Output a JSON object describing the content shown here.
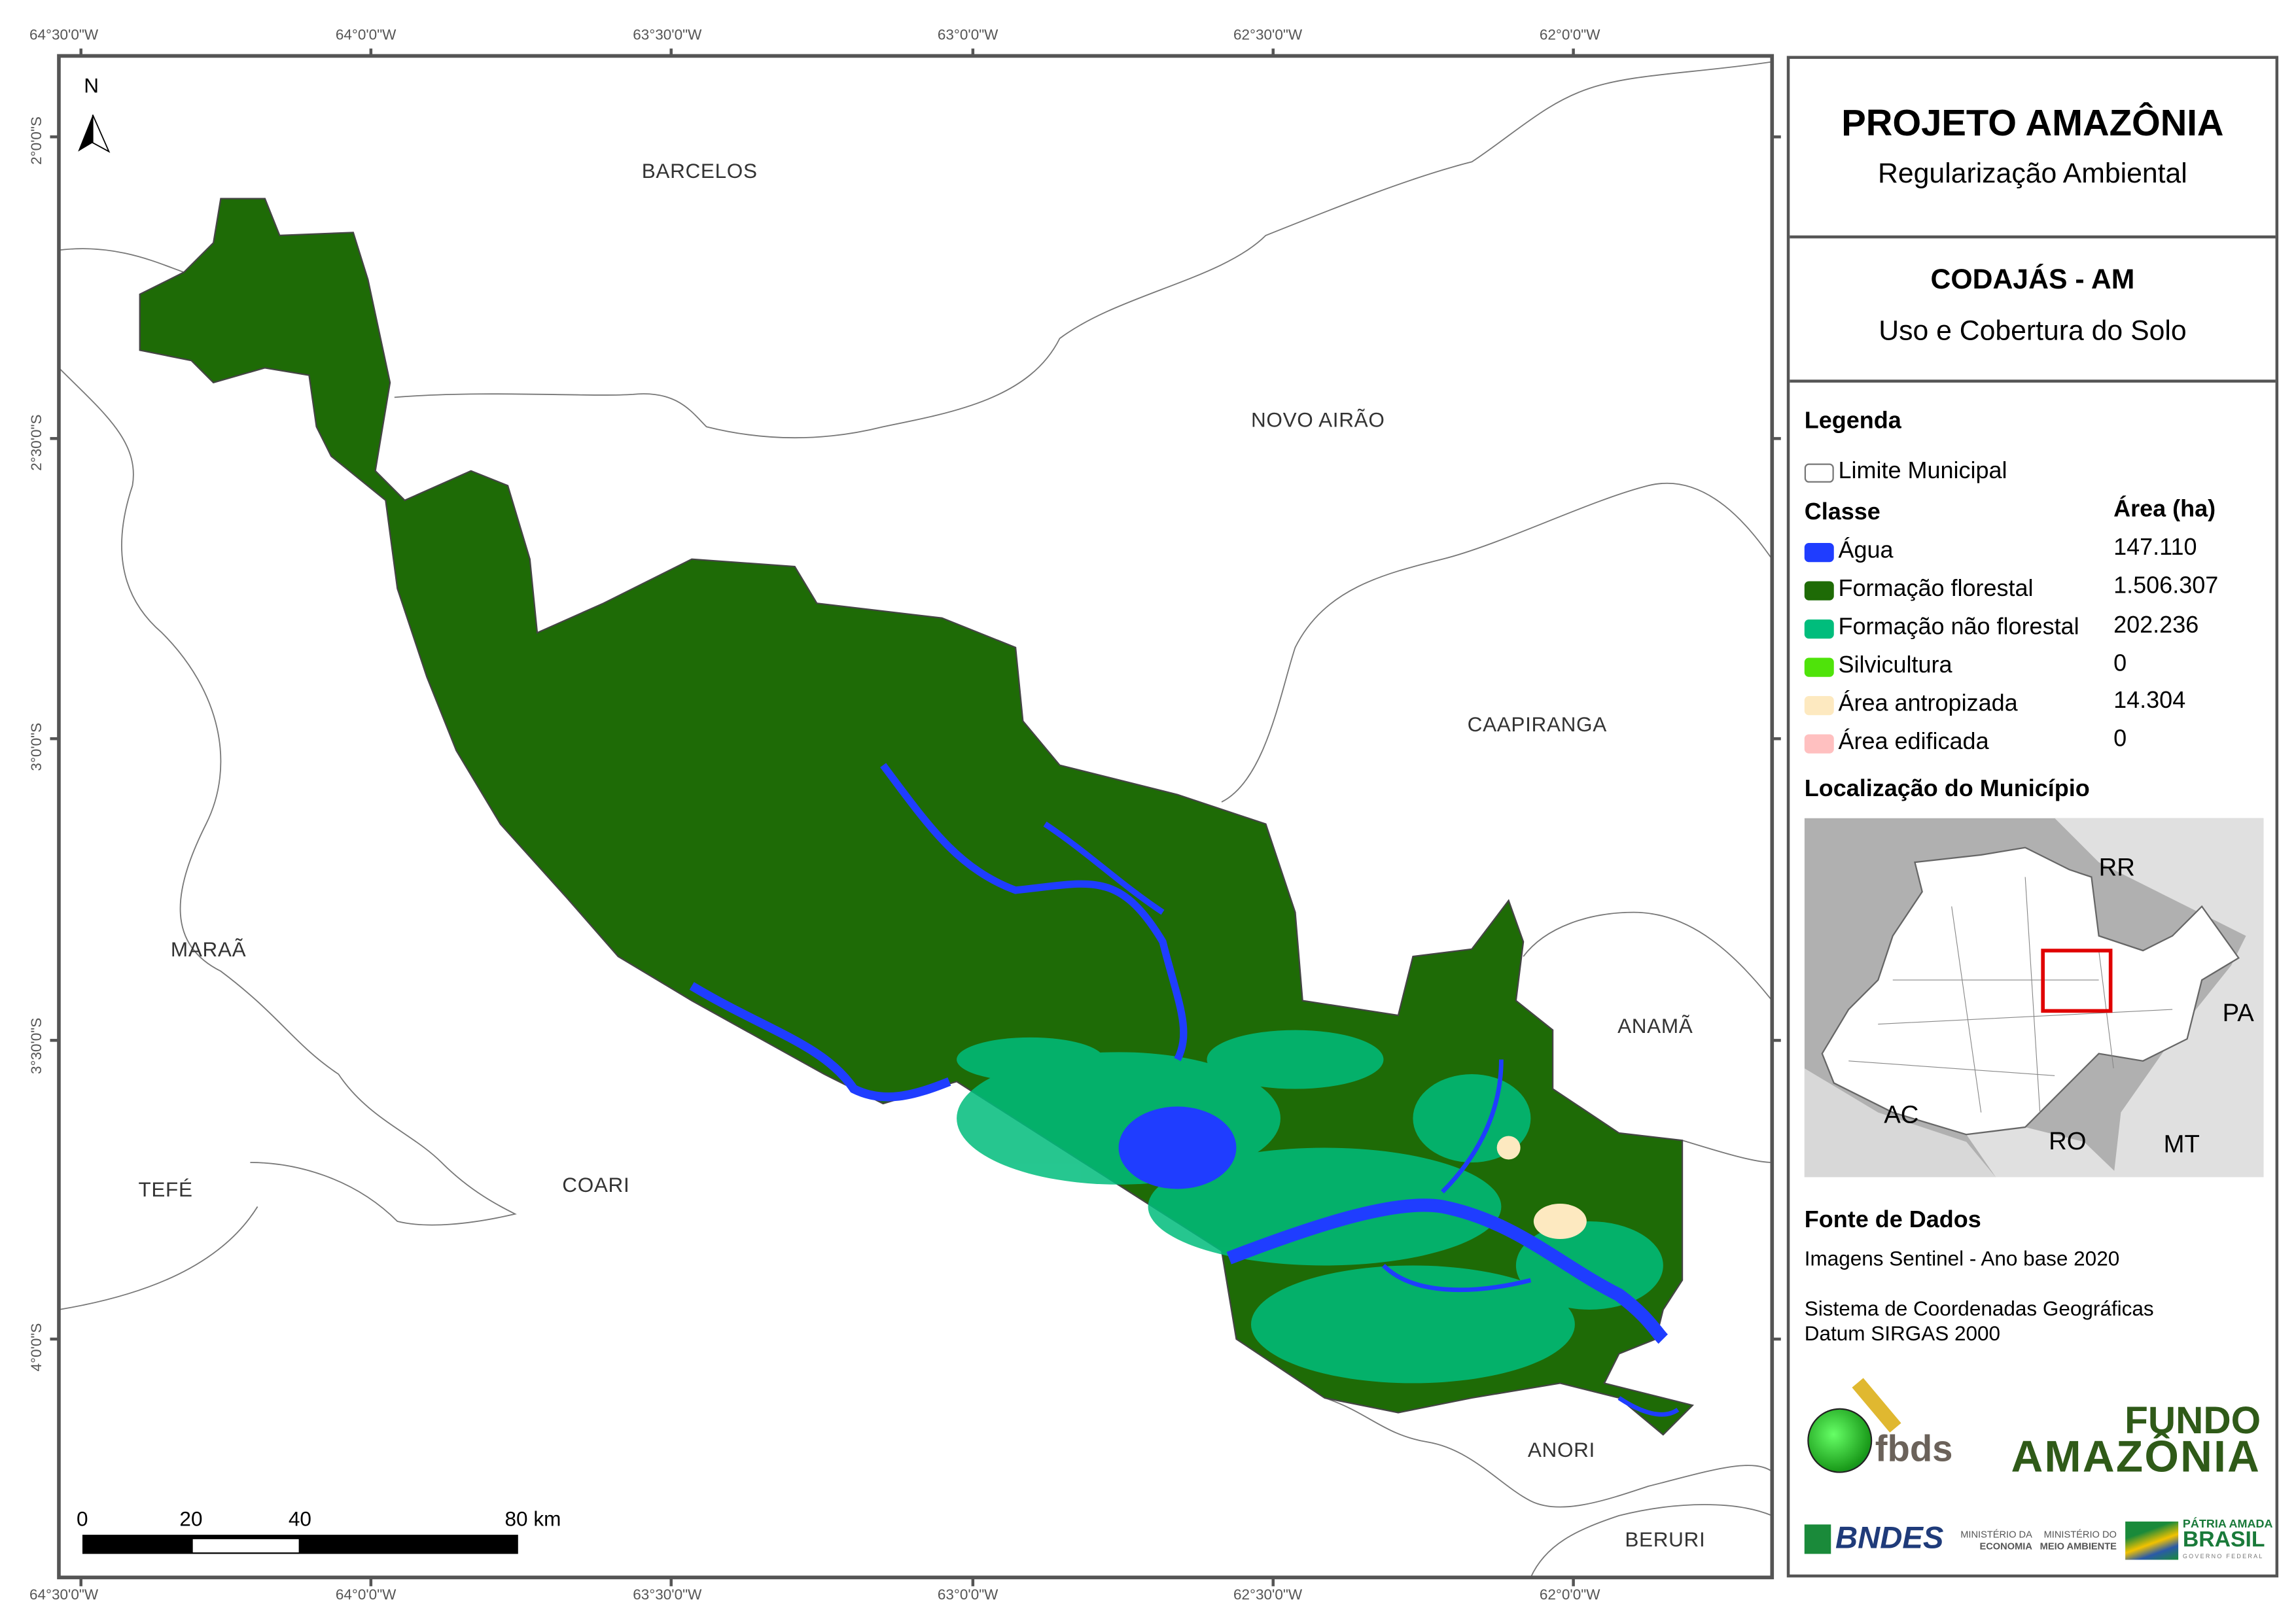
{
  "map": {
    "top_coords": [
      "64°30'0\"W",
      "64°0'0\"W",
      "63°30'0\"W",
      "63°0'0\"W",
      "62°30'0\"W",
      "62°0'0\"W"
    ],
    "bottom_coords": [
      "64°30'0\"W",
      "64°0'0\"W",
      "63°30'0\"W",
      "63°0'0\"W",
      "62°30'0\"W",
      "62°0'0\"W"
    ],
    "left_coords": [
      "2°0'0\"S",
      "2°30'0\"S",
      "3°0'0\"S",
      "3°30'0\"S",
      "4°0'0\"S"
    ],
    "north_label": "N",
    "place_labels": [
      "BARCELOS",
      "NOVO AIRÃO",
      "CAAPIRANGA",
      "MARAÃ",
      "ANAMÃ",
      "TEFÉ",
      "COARI",
      "ANORI",
      "BERURI"
    ],
    "scale_bar": {
      "labels": [
        "0",
        "20",
        "40",
        "80 km"
      ]
    }
  },
  "panel": {
    "title": "PROJETO AMAZÔNIA",
    "subtitle": "Regularização Ambiental",
    "municipality": "CODAJÁS - AM",
    "map_theme": "Uso e Cobertura do Solo",
    "legend_title": "Legenda",
    "boundary_label": "Limite Municipal",
    "class_header": "Classe",
    "area_header": "Área (ha)",
    "classes": [
      {
        "label": "Água",
        "area": "147.110",
        "color": "#1f3dff"
      },
      {
        "label": "Formação florestal",
        "area": "1.506.307",
        "color": "#1e6b06"
      },
      {
        "label": "Formação não florestal",
        "area": "202.236",
        "color": "#00bd7c"
      },
      {
        "label": "Silvicultura",
        "area": "0",
        "color": "#4fe30a"
      },
      {
        "label": "Área antropizada",
        "area": "14.304",
        "color": "#fde9c0"
      },
      {
        "label": "Área edificada",
        "area": "0",
        "color": "#ffc0c0"
      }
    ],
    "location_title": "Localização do Município",
    "inset_labels": [
      "RR",
      "PA",
      "AC",
      "RO",
      "MT"
    ],
    "sources_title": "Fonte de Dados",
    "sources_line": "Imagens Sentinel - Ano base 2020",
    "crs_line1": "Sistema de Coordenadas Geográficas",
    "crs_line2": "Datum SIRGAS 2000",
    "logos": {
      "fbds": "fbds",
      "fundo1": "FUNDO",
      "fundo2": "AMAZÔNIA",
      "bndes": "BNDES",
      "min1a": "MINISTÉRIO DA",
      "min1b": "ECONOMIA",
      "min2a": "MINISTÉRIO DO",
      "min2b": "MEIO AMBIENTE",
      "brasil1": "PÁTRIA AMADA",
      "brasil2": "BRASIL",
      "brasil3": "GOVERNO FEDERAL"
    }
  }
}
